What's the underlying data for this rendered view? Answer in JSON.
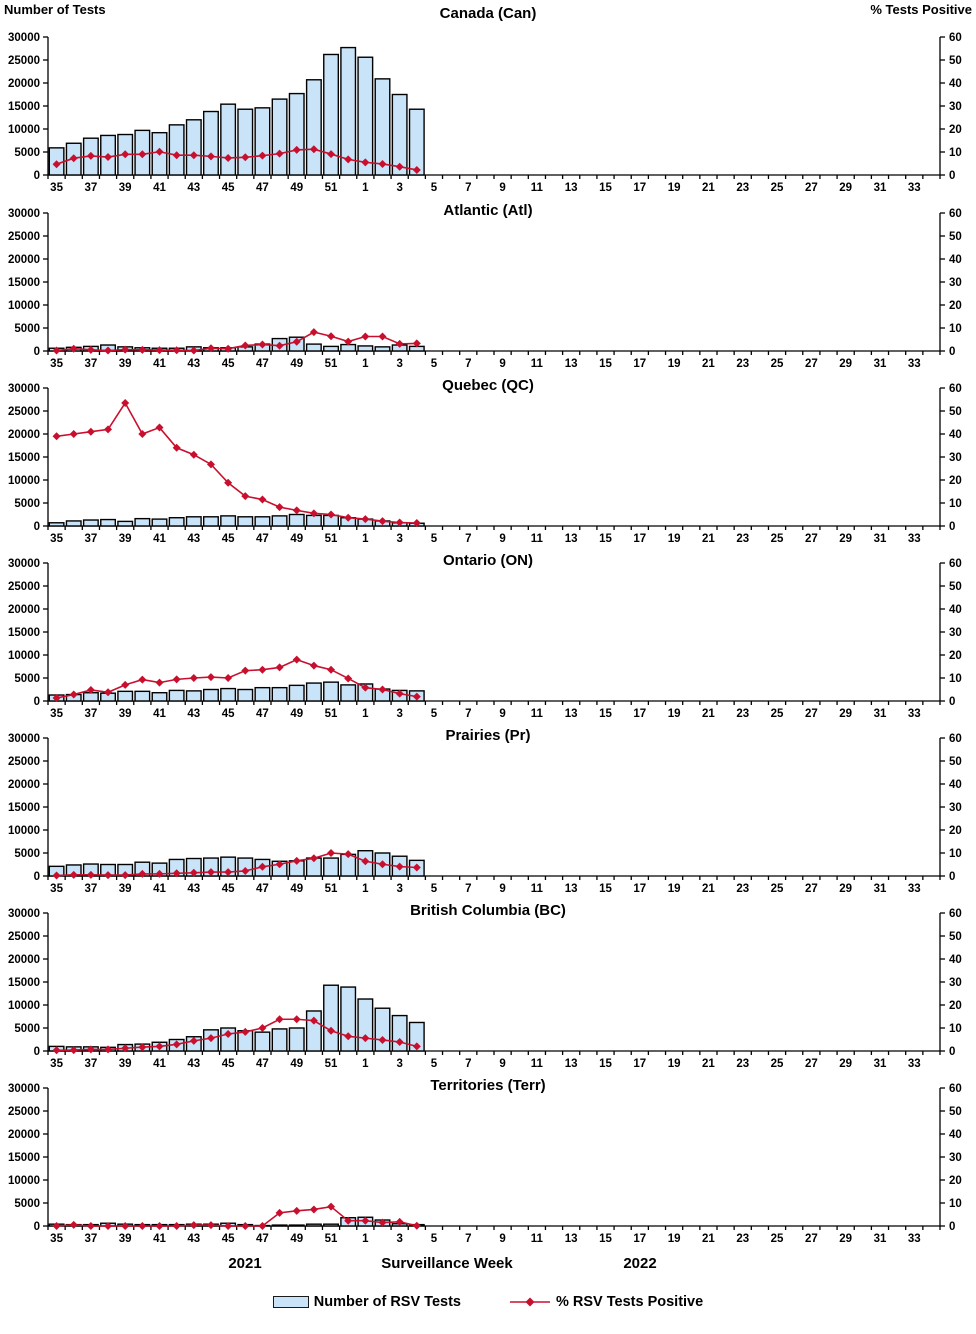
{
  "chart_data": {
    "type": "bar",
    "subtype": "combo-bar-line-7-panels",
    "left_axis": {
      "label": "Number of Tests",
      "min": 0,
      "max": 30000,
      "step": 5000
    },
    "right_axis": {
      "label": "% Tests Positive",
      "min": 0,
      "max": 60,
      "step": 10
    },
    "x": {
      "axis_label": "Surveillance Week",
      "year_left": "2021",
      "year_right": "2022",
      "categories": [
        35,
        36,
        37,
        38,
        39,
        40,
        41,
        42,
        43,
        44,
        45,
        46,
        47,
        48,
        49,
        50,
        51,
        52,
        1,
        2,
        3,
        4,
        5,
        6,
        7,
        8,
        9,
        10,
        11,
        12,
        13,
        14,
        15,
        16,
        17,
        18,
        19,
        20,
        21,
        22,
        23,
        24,
        25,
        26,
        27,
        28,
        29,
        30,
        31,
        32,
        33,
        34
      ],
      "tick_label_rule": "labels shown on odd-numbered weeks only"
    },
    "series_weeks": [
      35,
      36,
      37,
      38,
      39,
      40,
      41,
      42,
      43,
      44,
      45,
      46,
      47,
      48,
      49,
      50,
      51,
      52,
      1,
      2,
      3,
      4
    ],
    "panels": [
      {
        "title": "Canada (Can)",
        "tests": [
          5900,
          6900,
          8000,
          8600,
          8800,
          9700,
          9200,
          10900,
          12000,
          13800,
          15400,
          14300,
          14600,
          16500,
          17700,
          20700,
          26200,
          27700,
          25600,
          20900,
          17500,
          14300
        ],
        "pct_positive": [
          4.7,
          7.3,
          8.3,
          7.8,
          9.0,
          9.0,
          10.1,
          8.6,
          8.6,
          8.1,
          7.4,
          7.7,
          8.4,
          9.3,
          10.9,
          11.2,
          9.1,
          6.8,
          5.5,
          4.8,
          3.6,
          2.2
        ]
      },
      {
        "title": "Atlantic (Atl)",
        "tests": [
          600,
          800,
          1000,
          1300,
          900,
          700,
          600,
          600,
          900,
          700,
          700,
          900,
          1500,
          2700,
          3000,
          1500,
          1000,
          1400,
          1100,
          900,
          1300,
          1000
        ],
        "pct_positive": [
          0.2,
          1.0,
          0.5,
          0.2,
          0.6,
          0.5,
          0.4,
          0.3,
          0.2,
          1.2,
          1.0,
          2.4,
          2.8,
          2.3,
          4.0,
          8.2,
          6.4,
          4.1,
          6.3,
          6.3,
          3.1,
          3.3
        ]
      },
      {
        "title": "Quebec (QC)",
        "tests": [
          700,
          1100,
          1300,
          1400,
          1000,
          1600,
          1500,
          1800,
          2000,
          2000,
          2200,
          2000,
          2000,
          2200,
          2500,
          2300,
          2300,
          1800,
          1500,
          1100,
          700,
          600
        ],
        "pct_positive": [
          39.0,
          40.0,
          41.0,
          42.0,
          53.5,
          40.0,
          42.8,
          34.0,
          31.0,
          26.8,
          18.8,
          13.0,
          11.5,
          8.2,
          6.8,
          5.5,
          5.0,
          3.6,
          3.0,
          2.1,
          1.5,
          1.3
        ]
      },
      {
        "title": "Ontario (ON)",
        "tests": [
          1300,
          1400,
          1800,
          1700,
          2100,
          2100,
          1800,
          2300,
          2200,
          2500,
          2700,
          2500,
          2900,
          2900,
          3400,
          3900,
          4100,
          3500,
          3700,
          2600,
          2300,
          2200
        ],
        "pct_positive": [
          1.3,
          2.8,
          4.8,
          3.8,
          7.0,
          9.3,
          8.0,
          9.4,
          10.0,
          10.4,
          10.0,
          13.2,
          13.6,
          14.6,
          18.0,
          15.4,
          13.6,
          9.8,
          5.8,
          5.0,
          3.2,
          1.9
        ]
      },
      {
        "title": "Prairies (Pr)",
        "tests": [
          2100,
          2400,
          2600,
          2500,
          2500,
          3000,
          2800,
          3600,
          3800,
          3900,
          4100,
          3900,
          3600,
          3200,
          3300,
          3900,
          3900,
          4700,
          5500,
          5000,
          4300,
          3400
        ],
        "pct_positive": [
          0.2,
          0.5,
          0.5,
          0.4,
          0.4,
          0.9,
          0.9,
          1.2,
          1.4,
          1.7,
          1.7,
          2.2,
          4.0,
          5.1,
          6.6,
          7.7,
          10.0,
          9.5,
          6.4,
          5.1,
          4.1,
          3.7
        ]
      },
      {
        "title": "British Columbia (BC)",
        "tests": [
          1000,
          900,
          900,
          800,
          1400,
          1500,
          1900,
          2500,
          3100,
          4600,
          5000,
          4400,
          4100,
          4800,
          5000,
          8700,
          14300,
          13900,
          11300,
          9300,
          7700,
          6200
        ],
        "pct_positive": [
          0.3,
          0.4,
          0.7,
          0.7,
          1.2,
          1.7,
          2.0,
          2.9,
          4.4,
          5.6,
          7.4,
          8.3,
          10.0,
          13.8,
          13.8,
          13.2,
          8.8,
          6.4,
          5.6,
          4.8,
          3.9,
          2.0
        ]
      },
      {
        "title": "Territories (Terr)",
        "tests": [
          400,
          300,
          300,
          600,
          400,
          300,
          300,
          300,
          400,
          400,
          600,
          300,
          100,
          200,
          200,
          400,
          400,
          1800,
          1900,
          1300,
          500,
          300
        ],
        "pct_positive": [
          0,
          0.5,
          0,
          0,
          0,
          0,
          0,
          0,
          0.4,
          0.4,
          0,
          0,
          0,
          5.7,
          6.6,
          7.2,
          8.4,
          2.3,
          2.3,
          1.5,
          1.8,
          0.1
        ]
      }
    ],
    "legend": {
      "tests_label": "Number of RSV Tests",
      "pct_label": "% RSV Tests Positive"
    },
    "colors": {
      "bar_fill": "#C9E4F8",
      "bar_stroke": "#000000",
      "line": "#C8102E",
      "text": "#000000"
    }
  }
}
